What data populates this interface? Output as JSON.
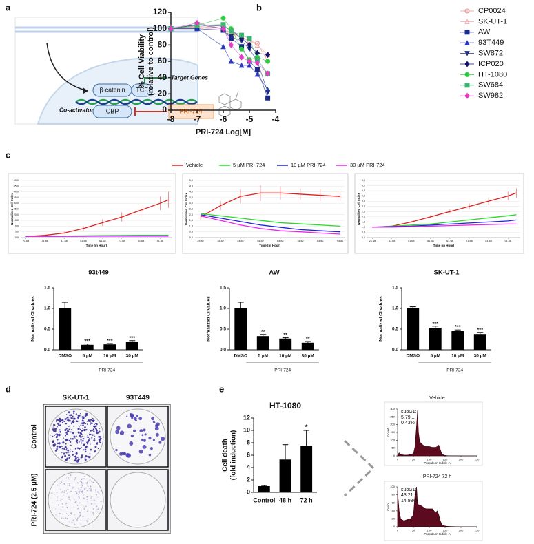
{
  "panel_labels": [
    "a",
    "b",
    "c",
    "d",
    "e"
  ],
  "diagram": {
    "beta_catenin": "β-catenin",
    "tcf": "TCF",
    "target_genes": "Target Genes",
    "coactivator": "Co-activator",
    "cbp": "CBP",
    "drug": "PRI-724"
  },
  "photos": {
    "columns": [
      "SK-UT-1",
      "93T449"
    ],
    "rows": [
      "Control",
      "PRI-724 (2.5 µM)"
    ]
  },
  "chart_data": [
    {
      "type": "scatter",
      "x_label": "PRI-724 Log[M]",
      "y_label": [
        "% Cell Viability",
        "(relative to control)"
      ],
      "x": [
        -8,
        -7,
        -6,
        -5.7,
        -5.3,
        -5,
        -4.7,
        -4.3
      ],
      "xlim": [
        -8,
        -4
      ],
      "xticks": [
        -8,
        -7,
        -6,
        -5,
        -4
      ],
      "ylim": [
        0,
        120
      ],
      "yticks": [
        0,
        20,
        40,
        60,
        80,
        100,
        120
      ],
      "series": [
        {
          "name": "CP0024",
          "color": "#f08a8a",
          "marker": "circle-open",
          "values": [
            100,
            103,
            100,
            95,
            88,
            85,
            82,
            60
          ]
        },
        {
          "name": "SK-UT-1",
          "color": "#f4a6a6",
          "marker": "triangle-open",
          "values": [
            100,
            102,
            98,
            95,
            90,
            85,
            80,
            68
          ]
        },
        {
          "name": "AW",
          "color": "#1a2a8a",
          "marker": "square",
          "values": [
            100,
            100,
            98,
            88,
            78,
            60,
            50,
            15
          ]
        },
        {
          "name": "93T449",
          "color": "#2a3ab8",
          "marker": "triangle",
          "values": [
            100,
            100,
            78,
            60,
            55,
            55,
            44,
            25
          ]
        },
        {
          "name": "SW872",
          "color": "#1f2f7f",
          "marker": "triangle-down",
          "values": [
            100,
            105,
            100,
            90,
            85,
            75,
            60,
            22
          ]
        },
        {
          "name": "ICP020",
          "color": "#14146a",
          "marker": "diamond",
          "values": [
            100,
            105,
            103,
            98,
            88,
            80,
            70,
            68
          ]
        },
        {
          "name": "HT-1080",
          "color": "#2ecc40",
          "marker": "circle",
          "values": [
            100,
            104,
            113,
            100,
            75,
            62,
            65,
            60
          ]
        },
        {
          "name": "SW684",
          "color": "#3cb371",
          "marker": "square",
          "values": [
            100,
            104,
            105,
            97,
            92,
            88,
            62,
            45
          ]
        },
        {
          "name": "SW982",
          "color": "#e040c0",
          "marker": "diamond",
          "values": [
            100,
            107,
            100,
            80,
            65,
            60,
            58,
            45
          ]
        }
      ]
    },
    {
      "type": "line",
      "y_label": "Normalized Cell Index",
      "x_label": "Time (in Hour)",
      "grid": true,
      "x": [
        21.68,
        31.68,
        41.68,
        51.68,
        61.68,
        71.68,
        81.68,
        91.68,
        96
      ],
      "xlim": [
        19,
        98
      ],
      "xticks": [
        {
          "value": 21.68,
          "label": "21,68"
        },
        {
          "value": 31.68,
          "label": "31,68"
        },
        {
          "value": 41.68,
          "label": "41,68"
        },
        {
          "value": 51.68,
          "label": "51,68"
        },
        {
          "value": 61.68,
          "label": "61,68"
        },
        {
          "value": 71.68,
          "label": "71,68"
        },
        {
          "value": 81.68,
          "label": "81,68"
        },
        {
          "value": 91.68,
          "label": "91,68"
        }
      ],
      "ylim": [
        0,
        50
      ],
      "yticks": [
        {
          "value": 0,
          "label": "0,0"
        },
        {
          "value": 5,
          "label": "5,0"
        },
        {
          "value": 10,
          "label": "10,0"
        },
        {
          "value": 15,
          "label": "15,0"
        },
        {
          "value": 20,
          "label": "20,0"
        },
        {
          "value": 25,
          "label": "25,0"
        },
        {
          "value": 30,
          "label": "30,0"
        },
        {
          "value": 35,
          "label": "35,0"
        },
        {
          "value": 40,
          "label": "40,0"
        },
        {
          "value": 45,
          "label": "45,0"
        },
        {
          "value": 50,
          "label": "50,0"
        }
      ],
      "series": [
        {
          "name": "Vehicle",
          "color": "#e02020",
          "values": [
            1,
            2,
            4,
            8,
            13,
            18,
            24,
            30,
            33
          ],
          "errors": [
            0.2,
            0.5,
            1,
            2,
            3,
            4,
            5,
            6,
            7
          ]
        },
        {
          "name": "5 µM PRI-724",
          "color": "#22dd22",
          "values": [
            1,
            1.2,
            1.4,
            1.6,
            1.8,
            1.9,
            2,
            2,
            2
          ]
        },
        {
          "name": "10 µM PRI-724",
          "color": "#2020dd",
          "values": [
            1,
            1.1,
            1.2,
            1.3,
            1.4,
            1.5,
            1.5,
            1.5,
            1.5
          ]
        },
        {
          "name": "30 µM PRI-724",
          "color": "#ee22ee",
          "values": [
            1,
            1,
            1.1,
            1.1,
            1.2,
            1.2,
            1.2,
            1.2,
            1.2
          ]
        }
      ]
    },
    {
      "type": "line",
      "y_label": "Normalized Cell Index",
      "x_label": "Time (in Hour)",
      "grid": true,
      "x": [
        24.82,
        34.82,
        44.82,
        54.82,
        64.82,
        74.82,
        84.82,
        94.82
      ],
      "xlim": [
        22,
        97
      ],
      "xticks": [
        {
          "value": 24.82,
          "label": "24,82"
        },
        {
          "value": 34.82,
          "label": "34,82"
        },
        {
          "value": 44.82,
          "label": "44,82"
        },
        {
          "value": 54.82,
          "label": "54,82"
        },
        {
          "value": 64.82,
          "label": "64,82"
        },
        {
          "value": 74.82,
          "label": "74,82"
        },
        {
          "value": 84.82,
          "label": "84,82"
        },
        {
          "value": 94.82,
          "label": "94,82"
        }
      ],
      "ylim": [
        0,
        5
      ],
      "yticks": [
        {
          "value": 0,
          "label": "0,0"
        },
        {
          "value": 0.5,
          "label": "0,5"
        },
        {
          "value": 1,
          "label": "1,0"
        },
        {
          "value": 1.5,
          "label": "1,5"
        },
        {
          "value": 2,
          "label": "2,0"
        },
        {
          "value": 2.5,
          "label": "2,5"
        },
        {
          "value": 3,
          "label": "3,0"
        },
        {
          "value": 3.5,
          "label": "3,5"
        },
        {
          "value": 4,
          "label": "4,0"
        },
        {
          "value": 4.5,
          "label": "4,5"
        },
        {
          "value": 5,
          "label": "5,0"
        }
      ],
      "series": [
        {
          "color": "#e02020",
          "values": [
            1.8,
            2.8,
            3.6,
            3.9,
            3.9,
            3.8,
            3.7,
            3.6
          ],
          "errors": [
            0.2,
            0.4,
            0.6,
            0.7,
            0.6,
            0.5,
            0.5,
            0.4
          ]
        },
        {
          "color": "#22dd22",
          "values": [
            2.1,
            1.9,
            1.7,
            1.5,
            1.3,
            1.2,
            1.1,
            1.0
          ]
        },
        {
          "color": "#2020dd",
          "values": [
            2.0,
            1.7,
            1.4,
            1.1,
            0.9,
            0.7,
            0.6,
            0.5
          ]
        },
        {
          "color": "#ee22ee",
          "values": [
            1.9,
            1.5,
            1.1,
            0.8,
            0.6,
            0.5,
            0.4,
            0.3
          ]
        }
      ]
    },
    {
      "type": "line",
      "y_label": "Normalized Cell Index",
      "x_label": "Time (in Hour)",
      "grid": true,
      "x": [
        21.68,
        31.68,
        41.68,
        51.68,
        61.68,
        71.68,
        81.68,
        91.68,
        96
      ],
      "xlim": [
        19,
        98
      ],
      "xticks": [
        {
          "value": 21.68,
          "label": "21,68"
        },
        {
          "value": 31.68,
          "label": "31,68"
        },
        {
          "value": 41.68,
          "label": "41,68"
        },
        {
          "value": 51.68,
          "label": "51,68"
        },
        {
          "value": 61.68,
          "label": "61,68"
        },
        {
          "value": 71.68,
          "label": "71,68"
        },
        {
          "value": 81.68,
          "label": "81,68"
        },
        {
          "value": 91.68,
          "label": "91,68"
        }
      ],
      "ylim": [
        0,
        5.5
      ],
      "yticks": [
        {
          "value": 0,
          "label": "0,0"
        },
        {
          "value": 0.5,
          "label": "0,5"
        },
        {
          "value": 1,
          "label": "1,0"
        },
        {
          "value": 1.5,
          "label": "1,5"
        },
        {
          "value": 2,
          "label": "2,0"
        },
        {
          "value": 2.5,
          "label": "2,5"
        },
        {
          "value": 3,
          "label": "3,0"
        },
        {
          "value": 3.5,
          "label": "3,5"
        },
        {
          "value": 4,
          "label": "4,0"
        },
        {
          "value": 4.5,
          "label": "4,5"
        },
        {
          "value": 5,
          "label": "5,0"
        },
        {
          "value": 5.5,
          "label": "5,5"
        }
      ],
      "series": [
        {
          "color": "#e02020",
          "values": [
            1,
            1.1,
            1.5,
            2,
            2.5,
            3,
            3.5,
            4,
            4.3
          ],
          "errors": [
            0.05,
            0.05,
            0.1,
            0.15,
            0.2,
            0.3,
            0.35,
            0.4,
            0.45
          ]
        },
        {
          "color": "#22dd22",
          "values": [
            1,
            1.1,
            1.2,
            1.3,
            1.5,
            1.7,
            1.9,
            2.1,
            2.2
          ]
        },
        {
          "color": "#2020dd",
          "values": [
            1,
            1.05,
            1.1,
            1.2,
            1.3,
            1.4,
            1.5,
            1.6,
            1.7
          ]
        },
        {
          "color": "#ee22ee",
          "values": [
            1,
            1,
            1.05,
            1.1,
            1.15,
            1.2,
            1.25,
            1.3,
            1.3
          ]
        }
      ]
    },
    {
      "type": "bar",
      "title": "93t449",
      "y_label": "Normalized CI values",
      "color": "#000000",
      "categories": [
        "DMSO",
        "5 µM",
        "10 µM",
        "30 µM"
      ],
      "values": [
        1.0,
        0.12,
        0.13,
        0.2
      ],
      "errors": [
        0.15,
        0.02,
        0.02,
        0.02
      ],
      "annotations": [
        null,
        "***",
        "***",
        "***"
      ],
      "group_label": "PRI-724",
      "ylim": [
        0,
        1.5
      ],
      "yticks": [
        {
          "value": 0,
          "label": "0.0"
        },
        {
          "value": 0.5,
          "label": "0.5"
        },
        {
          "value": 1,
          "label": "1.0"
        },
        {
          "value": 1.5,
          "label": "1.5"
        }
      ]
    },
    {
      "type": "bar",
      "title": "AW",
      "y_label": "Normalized CI values",
      "color": "#000000",
      "categories": [
        "DMSO",
        "5 µM",
        "10 µM",
        "30 µM"
      ],
      "values": [
        1.0,
        0.33,
        0.27,
        0.17
      ],
      "errors": [
        0.15,
        0.04,
        0.02,
        0.03
      ],
      "annotations": [
        null,
        "**",
        "**",
        "**"
      ],
      "group_label": "PRI-724",
      "ylim": [
        0,
        1.5
      ],
      "yticks": [
        {
          "value": 0,
          "label": "0.0"
        },
        {
          "value": 0.5,
          "label": "0.5"
        },
        {
          "value": 1,
          "label": "1.0"
        },
        {
          "value": 1.5,
          "label": "1.5"
        }
      ]
    },
    {
      "type": "bar",
      "title": "SK-UT-1",
      "y_label": "Normalized CI values",
      "color": "#000000",
      "categories": [
        "DMSO",
        "5 µM",
        "10 µM",
        "30 µM"
      ],
      "values": [
        1.0,
        0.53,
        0.46,
        0.38
      ],
      "errors": [
        0.04,
        0.04,
        0.02,
        0.04
      ],
      "annotations": [
        null,
        "***",
        "***",
        "***"
      ],
      "group_label": "PRI-724",
      "ylim": [
        0,
        1.5
      ],
      "yticks": [
        {
          "value": 0,
          "label": "0.0"
        },
        {
          "value": 0.5,
          "label": "0.5"
        },
        {
          "value": 1,
          "label": "1.0"
        },
        {
          "value": 1.5,
          "label": "1.5"
        }
      ]
    },
    {
      "type": "bar",
      "title": "HT-1080",
      "y_label": [
        "Cell death",
        "(fold induction)"
      ],
      "color": "#000000",
      "categories": [
        "Control",
        "48 h",
        "72 h"
      ],
      "values": [
        1.0,
        5.3,
        7.5
      ],
      "errors": [
        0.1,
        2.4,
        2.5
      ],
      "annotations": [
        null,
        null,
        "*"
      ],
      "ylim": [
        0,
        12
      ],
      "yticks": [
        0,
        2,
        4,
        6,
        8,
        10,
        12
      ]
    },
    {
      "type": "area",
      "title": "Vehicle",
      "x_label": "Propidium Iodide-A",
      "y_label": "Count",
      "color": "#5c0a1e",
      "annotation": [
        "subG1:",
        "5.79 ±",
        "0.43%"
      ],
      "x": [
        0,
        5,
        10,
        20,
        30,
        40,
        50,
        55,
        60,
        63,
        66,
        70,
        80,
        90,
        100,
        110,
        120,
        125,
        130,
        135,
        140,
        150,
        160,
        200,
        250
      ],
      "values": [
        5,
        20,
        10,
        5,
        5,
        8,
        15,
        60,
        200,
        290,
        150,
        90,
        70,
        60,
        60,
        55,
        55,
        60,
        70,
        40,
        10,
        3,
        1,
        0,
        0
      ],
      "xlim": [
        0,
        250
      ],
      "xticks": [
        0,
        50,
        100,
        150,
        200,
        250
      ],
      "ylim": [
        0,
        300
      ],
      "yticks": [
        0,
        50,
        100,
        150,
        200,
        250,
        300
      ]
    },
    {
      "type": "area",
      "title": "PRI-724 72 h",
      "x_label": "Propidium Iodide-A",
      "y_label": "Count",
      "color": "#5c0a1e",
      "annotation": [
        "subG1:",
        "43.21 ±",
        "14.93%"
      ],
      "x": [
        0,
        5,
        10,
        20,
        30,
        40,
        50,
        55,
        60,
        63,
        66,
        70,
        80,
        90,
        100,
        110,
        120,
        125,
        130,
        135,
        140,
        150,
        160,
        200,
        250
      ],
      "values": [
        90,
        40,
        20,
        15,
        18,
        20,
        30,
        80,
        100,
        60,
        55,
        55,
        50,
        45,
        45,
        45,
        35,
        40,
        30,
        15,
        5,
        2,
        1,
        0,
        0
      ],
      "xlim": [
        0,
        250
      ],
      "xticks": [
        0,
        50,
        100,
        150,
        200,
        250
      ],
      "ylim": [
        0,
        100
      ],
      "yticks": [
        0,
        20,
        40,
        60,
        80,
        100
      ]
    }
  ]
}
